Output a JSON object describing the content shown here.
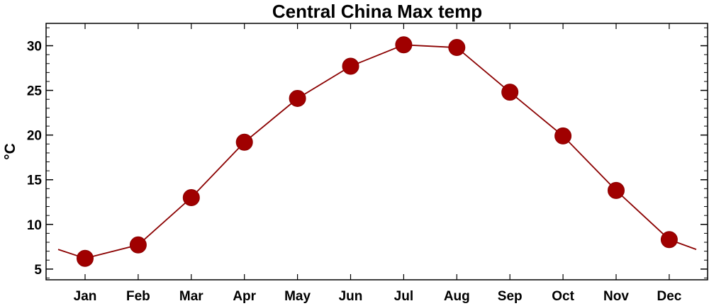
{
  "chart_data": {
    "type": "line",
    "title": "Central China Max temp",
    "xlabel": "",
    "ylabel": "°C",
    "categories": [
      "Jan",
      "Feb",
      "Mar",
      "Apr",
      "May",
      "Jun",
      "Jul",
      "Aug",
      "Sep",
      "Oct",
      "Nov",
      "Dec"
    ],
    "series": [
      {
        "values": [
          6.2,
          7.7,
          13.0,
          19.2,
          24.1,
          27.7,
          30.1,
          29.8,
          24.8,
          19.9,
          13.8,
          8.3
        ]
      }
    ],
    "line_extends_to_edges": {
      "left_value": 7.2,
      "right_value": 7.2
    },
    "y_ticks": [
      5,
      10,
      15,
      20,
      25,
      30
    ],
    "ylim": [
      3.8,
      32.5
    ],
    "grid": false,
    "legend": "none",
    "colors": {
      "line": "#8b0000",
      "marker": "#a00000",
      "axis": "#000000"
    }
  }
}
